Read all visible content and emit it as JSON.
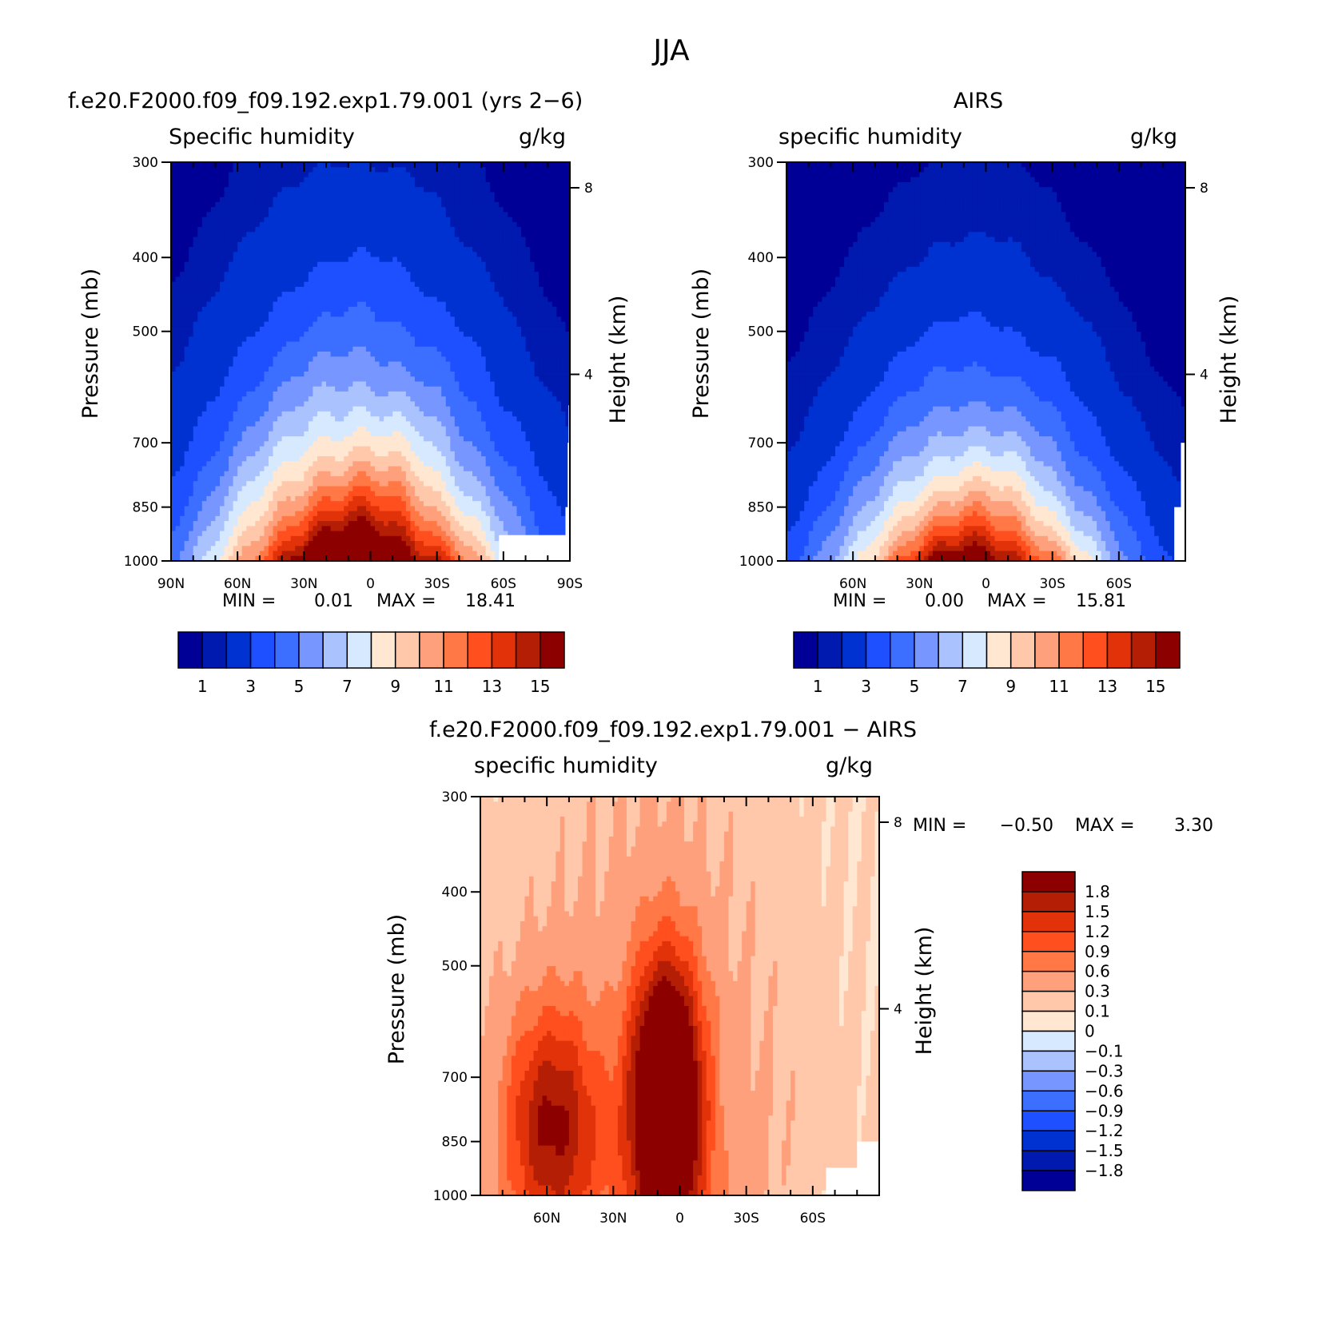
{
  "main_title": "JJA",
  "chart_data": [
    {
      "type": "heatmap",
      "title": "f.e20.F2000.f09_f09.192.exp1.79.001 (yrs 2−6)",
      "left_label": "Specific humidity",
      "right_label": "g/kg",
      "ylabel": "Pressure (mb)",
      "ylabel_right": "Height (km)",
      "y_ticks": [
        "300",
        "400",
        "500",
        "700",
        "850",
        "1000"
      ],
      "y_right_ticks": [
        "8",
        "4"
      ],
      "x_ticks": [
        "90N",
        "60N",
        "30N",
        "0",
        "30S",
        "60S",
        "90S"
      ],
      "x_tick_lats": [
        90,
        60,
        30,
        0,
        -30,
        -60,
        -90
      ],
      "xlim": [
        90,
        -90
      ],
      "ylim": [
        1000,
        300
      ],
      "y_log": true,
      "min_label": "MIN =",
      "min_value": "0.01",
      "max_label": "MAX =",
      "max_value": "18.41",
      "field": {
        "peak_lat": 6,
        "peak_value": 18.41,
        "surface_scale": 0.88,
        "surface_width": 44,
        "scale_height": 0.42
      },
      "colorbar_orientation": "horizontal",
      "colorbar_labels": [
        "1",
        "3",
        "5",
        "7",
        "9",
        "11",
        "13",
        "15"
      ],
      "colorbar_levels": [
        0.5,
        1,
        2,
        3,
        4,
        5,
        6,
        7,
        8,
        9,
        10,
        11,
        12,
        13,
        14,
        15
      ],
      "colorbar_colors": [
        "#000096",
        "#0019af",
        "#0032d2",
        "#1e50ff",
        "#3c6eff",
        "#7896ff",
        "#aac3ff",
        "#d7e9ff",
        "#ffe7d2",
        "#ffc8aa",
        "#ffa07d",
        "#ff7846",
        "#ff4f1e",
        "#e1320a",
        "#b41e05",
        "#8c0000"
      ]
    },
    {
      "type": "heatmap",
      "title": "AIRS",
      "left_label": "specific humidity",
      "right_label": "g/kg",
      "ylabel": "Pressure (mb)",
      "ylabel_right": "Height (km)",
      "y_ticks": [
        "300",
        "400",
        "500",
        "700",
        "850",
        "1000"
      ],
      "y_right_ticks": [
        "8",
        "4"
      ],
      "x_ticks": [
        "60N",
        "30N",
        "0",
        "30S",
        "60S"
      ],
      "x_tick_lats": [
        60,
        30,
        0,
        -30,
        -60
      ],
      "xlim": [
        90,
        -90
      ],
      "ylim": [
        1000,
        300
      ],
      "y_log": true,
      "min_label": "MIN =",
      "min_value": "0.00",
      "max_label": "MAX =",
      "max_value": "15.81",
      "field": {
        "peak_lat": 6,
        "peak_value": 15.81,
        "surface_scale": 0.86,
        "surface_width": 40,
        "scale_height": 0.36
      },
      "colorbar_orientation": "horizontal",
      "colorbar_labels": [
        "1",
        "3",
        "5",
        "7",
        "9",
        "11",
        "13",
        "15"
      ],
      "colorbar_levels": [
        0.5,
        1,
        2,
        3,
        4,
        5,
        6,
        7,
        8,
        9,
        10,
        11,
        12,
        13,
        14,
        15
      ],
      "colorbar_colors": [
        "#000096",
        "#0019af",
        "#0032d2",
        "#1e50ff",
        "#3c6eff",
        "#7896ff",
        "#aac3ff",
        "#d7e9ff",
        "#ffe7d2",
        "#ffc8aa",
        "#ffa07d",
        "#ff7846",
        "#ff4f1e",
        "#e1320a",
        "#b41e05",
        "#8c0000"
      ]
    },
    {
      "type": "heatmap",
      "title": "f.e20.F2000.f09_f09.192.exp1.79.001 − AIRS",
      "left_label": "specific humidity",
      "right_label": "g/kg",
      "ylabel": "Pressure (mb)",
      "ylabel_right": "Height (km)",
      "y_ticks": [
        "300",
        "400",
        "500",
        "700",
        "850",
        "1000"
      ],
      "y_right_ticks": [
        "8",
        "4"
      ],
      "x_ticks": [
        "60N",
        "30N",
        "0",
        "30S",
        "60S"
      ],
      "x_tick_lats": [
        60,
        30,
        0,
        -30,
        -60
      ],
      "xlim": [
        90,
        -90
      ],
      "ylim": [
        1000,
        300
      ],
      "y_log": true,
      "min_label": "MIN =",
      "min_value": "−0.50",
      "max_label": "MAX =",
      "max_value": "3.30",
      "colorbar_orientation": "vertical",
      "colorbar_labels": [
        "1.8",
        "1.5",
        "1.2",
        "0.9",
        "0.6",
        "0.3",
        "0.1",
        "0",
        "−0.1",
        "−0.3",
        "−0.6",
        "−0.9",
        "−1.2",
        "−1.5",
        "−1.8"
      ],
      "colorbar_levels": [
        -1.8,
        -1.5,
        -1.2,
        -0.9,
        -0.6,
        -0.3,
        -0.1,
        0,
        0.1,
        0.3,
        0.6,
        0.9,
        1.2,
        1.5,
        1.8
      ],
      "colorbar_colors": [
        "#000096",
        "#0019af",
        "#0032d2",
        "#1e50ff",
        "#3c6eff",
        "#7896ff",
        "#aac3ff",
        "#d7e9ff",
        "#ffe7d2",
        "#ffc8aa",
        "#ffa07d",
        "#ff7846",
        "#ff4f1e",
        "#e1320a",
        "#b41e05",
        "#8c0000"
      ]
    }
  ]
}
